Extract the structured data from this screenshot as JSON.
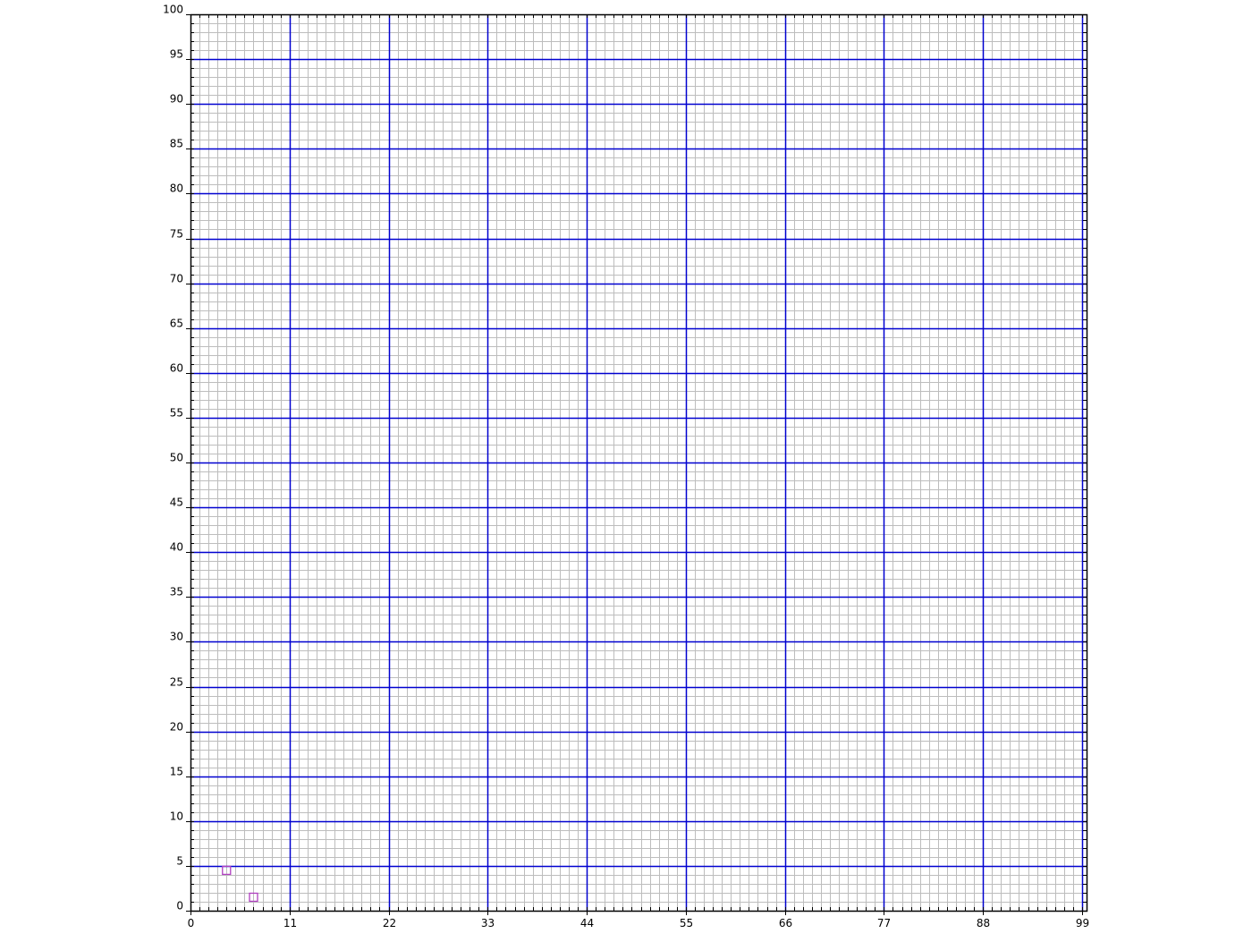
{
  "chart_data": {
    "type": "scatter",
    "title": "",
    "xlabel": "",
    "ylabel": "",
    "xlim": [
      0,
      99.5
    ],
    "ylim": [
      0,
      100
    ],
    "x_major_ticks": [
      0,
      11,
      22,
      33,
      44,
      55,
      66,
      77,
      88,
      99
    ],
    "y_major_ticks": [
      0,
      5,
      10,
      15,
      20,
      25,
      30,
      35,
      40,
      45,
      50,
      55,
      60,
      65,
      70,
      75,
      80,
      85,
      90,
      95,
      100
    ],
    "x_minor_step": 1,
    "y_minor_step": 1,
    "grid": true,
    "colors": {
      "minor_grid": "#bdbdbd",
      "major_grid": "#0000d0",
      "axis": "#000000",
      "marker": "#b040c0"
    },
    "series": [
      {
        "name": "points",
        "marker": "square-open",
        "points": [
          {
            "x": 4,
            "y": 4.5
          },
          {
            "x": 7,
            "y": 1.5
          }
        ]
      }
    ]
  }
}
